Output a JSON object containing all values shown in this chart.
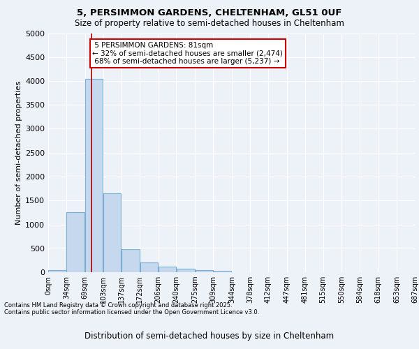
{
  "title_line1": "5, PERSIMMON GARDENS, CHELTENHAM, GL51 0UF",
  "title_line2": "Size of property relative to semi-detached houses in Cheltenham",
  "xlabel": "Distribution of semi-detached houses by size in Cheltenham",
  "ylabel": "Number of semi-detached properties",
  "bar_values": [
    50,
    1250,
    4050,
    1650,
    480,
    200,
    120,
    80,
    50,
    30,
    0,
    0,
    0,
    0,
    0,
    0,
    0,
    0,
    0,
    0
  ],
  "bin_edges": [
    0,
    34,
    69,
    103,
    137,
    172,
    206,
    240,
    275,
    309,
    344,
    378,
    412,
    447,
    481,
    515,
    550,
    584,
    618,
    653,
    687
  ],
  "bin_labels": [
    "0sqm",
    "34sqm",
    "69sqm",
    "103sqm",
    "137sqm",
    "172sqm",
    "206sqm",
    "240sqm",
    "275sqm",
    "309sqm",
    "344sqm",
    "378sqm",
    "412sqm",
    "447sqm",
    "481sqm",
    "515sqm",
    "550sqm",
    "584sqm",
    "618sqm",
    "653sqm",
    "687sqm"
  ],
  "bar_color": "#c5d8ee",
  "bar_edge_color": "#7aafd4",
  "property_line_x": 81,
  "property_label": "5 PERSIMMON GARDENS: 81sqm",
  "pct_smaller": 32,
  "n_smaller": 2474,
  "pct_larger": 68,
  "n_larger": 5237,
  "annotation_box_color": "#cc0000",
  "vline_color": "#aa0000",
  "ylim": [
    0,
    5000
  ],
  "yticks": [
    0,
    500,
    1000,
    1500,
    2000,
    2500,
    3000,
    3500,
    4000,
    4500,
    5000
  ],
  "footer_line1": "Contains HM Land Registry data © Crown copyright and database right 2025.",
  "footer_line2": "Contains public sector information licensed under the Open Government Licence v3.0.",
  "background_color": "#edf1f8",
  "grid_color": "#ffffff"
}
